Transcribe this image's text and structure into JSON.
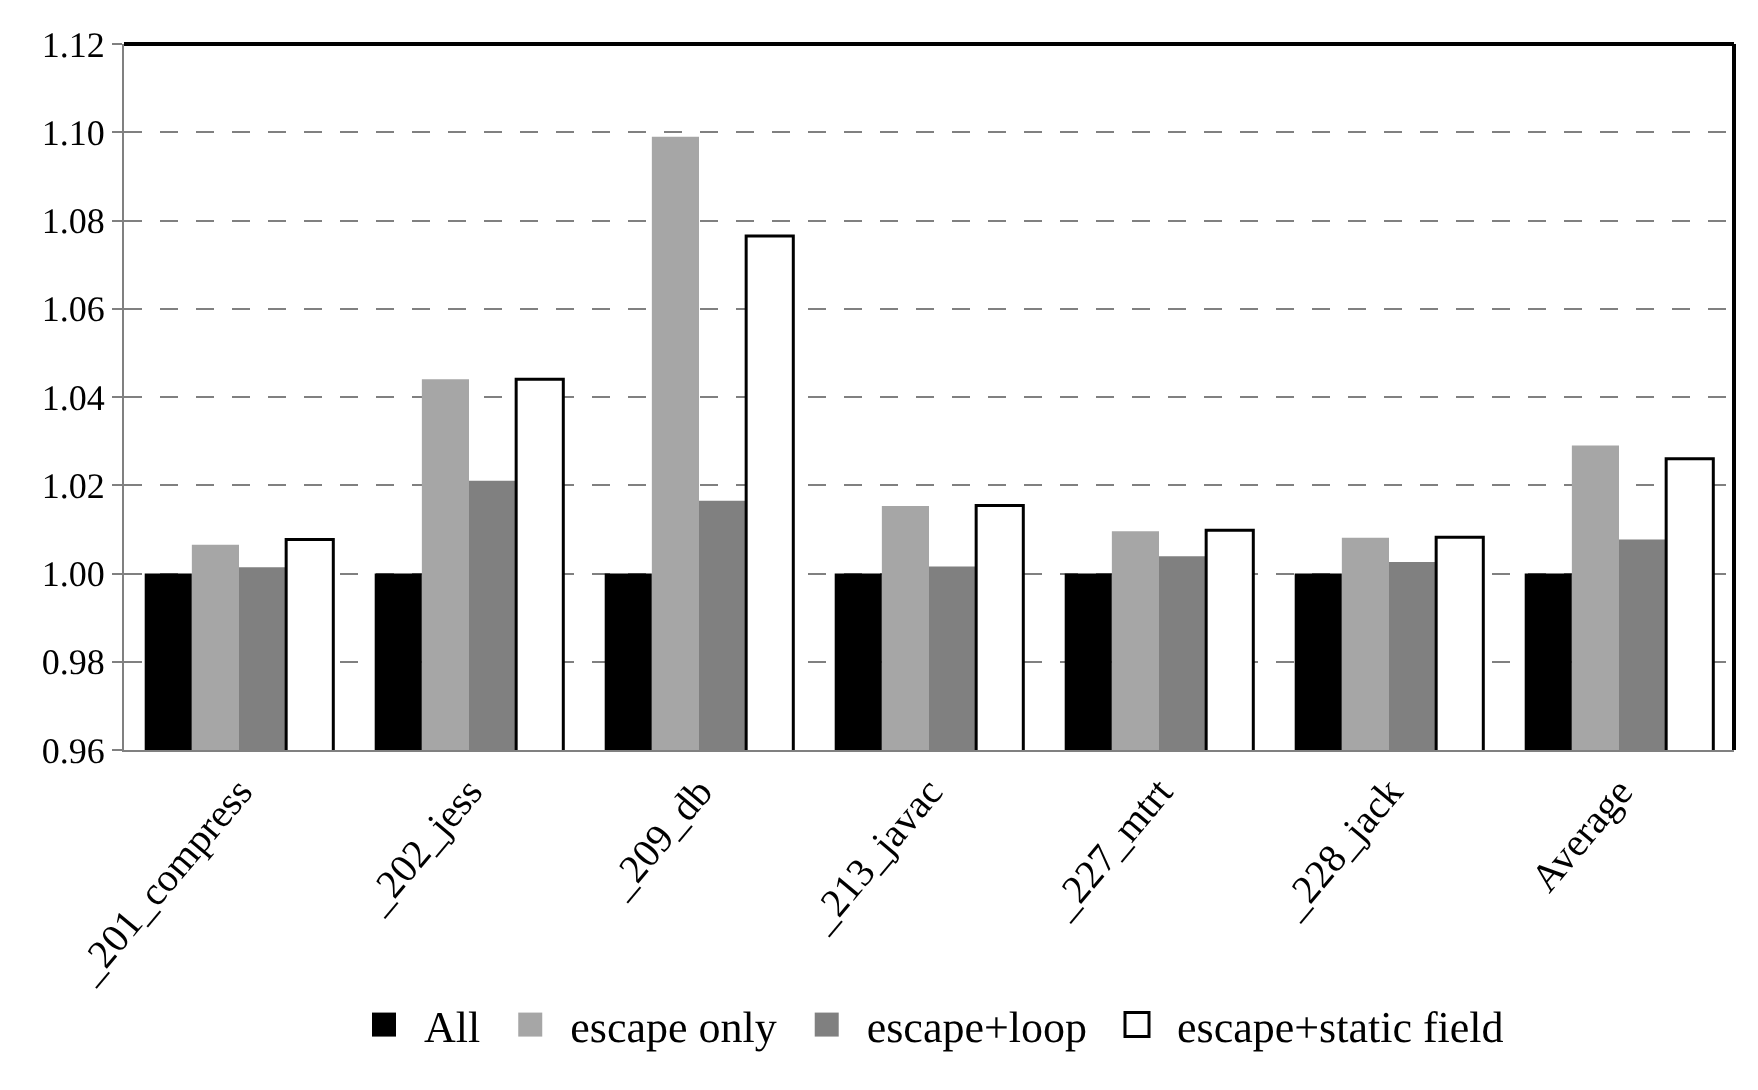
{
  "chart_data": {
    "type": "bar",
    "categories": [
      "_201_compress",
      "_202_jess",
      "_209_db",
      "_213_javac",
      "_227_mtrt",
      "_228_jack",
      "Average"
    ],
    "series": [
      {
        "name": "All",
        "color": "#000000",
        "values": [
          1.0,
          1.0,
          1.0,
          1.0,
          1.0,
          1.0,
          1.0
        ]
      },
      {
        "name": "escape only",
        "color": "#a6a6a6",
        "values": [
          1.0065,
          1.044,
          1.099,
          1.0153,
          1.0096,
          1.0081,
          1.029
        ]
      },
      {
        "name": "escape+loop",
        "color": "#808080",
        "values": [
          1.0014,
          1.021,
          1.0165,
          1.0016,
          1.0039,
          1.0026,
          1.0077
        ]
      },
      {
        "name": "escape+static field",
        "color": "#ffffff",
        "values": [
          1.0077,
          1.044,
          1.0765,
          1.0154,
          1.0098,
          1.0082,
          1.026
        ]
      }
    ],
    "ylim": [
      0.96,
      1.12
    ],
    "yticks": [
      {
        "value": 0.96,
        "label": "0.96"
      },
      {
        "value": 0.98,
        "label": "0.98"
      },
      {
        "value": 1.0,
        "label": "1.00"
      },
      {
        "value": 1.02,
        "label": "1.02"
      },
      {
        "value": 1.04,
        "label": "1.04"
      },
      {
        "value": 1.06,
        "label": "1.06"
      },
      {
        "value": 1.08,
        "label": "1.08"
      },
      {
        "value": 1.1,
        "label": "1.10"
      },
      {
        "value": 1.12,
        "label": "1.12"
      }
    ],
    "grid": "y",
    "legend": "bottom"
  }
}
